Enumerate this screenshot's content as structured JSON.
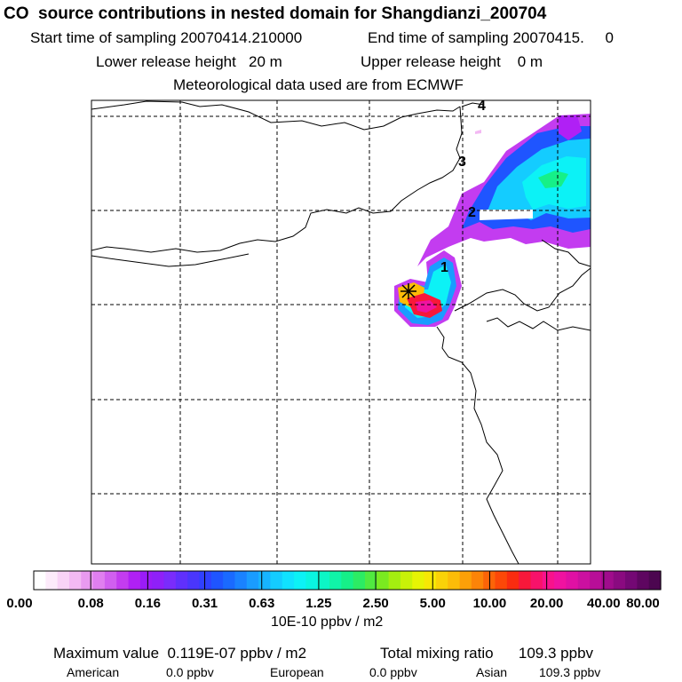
{
  "header": {
    "title": "CO  source contributions in nested domain for Shangdianzi_200704",
    "start_label": "Start time of sampling 20070414.210000",
    "end_label": "End time of sampling 20070415.     0",
    "lower_release": "Lower release height   20 m",
    "upper_release": "Upper release height    0 m",
    "met_data": "Meteorological data used are from ECMWF"
  },
  "map": {
    "trajectory_labels": [
      "1",
      "2",
      "3",
      "4"
    ],
    "site_marker": "receptor-star"
  },
  "colorbar": {
    "tick_labels": [
      "0.00",
      "0.08",
      "0.16",
      "0.31",
      "0.63",
      "1.25",
      "2.50",
      "5.00",
      "10.00",
      "20.00",
      "40.00",
      "80.00"
    ],
    "colors": [
      "#ffffff",
      "#fdebfb",
      "#f9d3f7",
      "#f3b9f3",
      "#e99af0",
      "#e07ff0",
      "#d15ff0",
      "#c33cf0",
      "#b020f5",
      "#9a1cf7",
      "#8f20f8",
      "#7a2cfb",
      "#6030fc",
      "#4a36fc",
      "#3040ff",
      "#1f55ff",
      "#1a6aff",
      "#1a82ff",
      "#1a9cff",
      "#17b4ff",
      "#14ccff",
      "#10e2ff",
      "#0cf2f6",
      "#0af5e0",
      "#0cf6c6",
      "#10f4a8",
      "#16f088",
      "#2cec64",
      "#50ea40",
      "#7aea20",
      "#a4ee10",
      "#c8f208",
      "#e6f404",
      "#f6e804",
      "#fad208",
      "#fcbc08",
      "#fca008",
      "#fc8408",
      "#fc6408",
      "#fc4808",
      "#fa2c10",
      "#f8183a",
      "#f8126a",
      "#f8128c",
      "#f012a0",
      "#e010a4",
      "#cc10a0",
      "#b80e98",
      "#a00c8c",
      "#8a0a80",
      "#740874",
      "#5e0660",
      "#4c0650"
    ],
    "units": "10E-10 ppbv / m2"
  },
  "stats": {
    "max_value": "Maximum value  0.119E-07 ppbv / m2",
    "total_mixing": "Total mixing ratio      109.3 ppbv",
    "american_label": "American",
    "american_value": "0.0 ppbv",
    "european_label": "European",
    "european_value": "0.0 ppbv",
    "asian_label": "Asian",
    "asian_value": "109.3 ppbv"
  }
}
